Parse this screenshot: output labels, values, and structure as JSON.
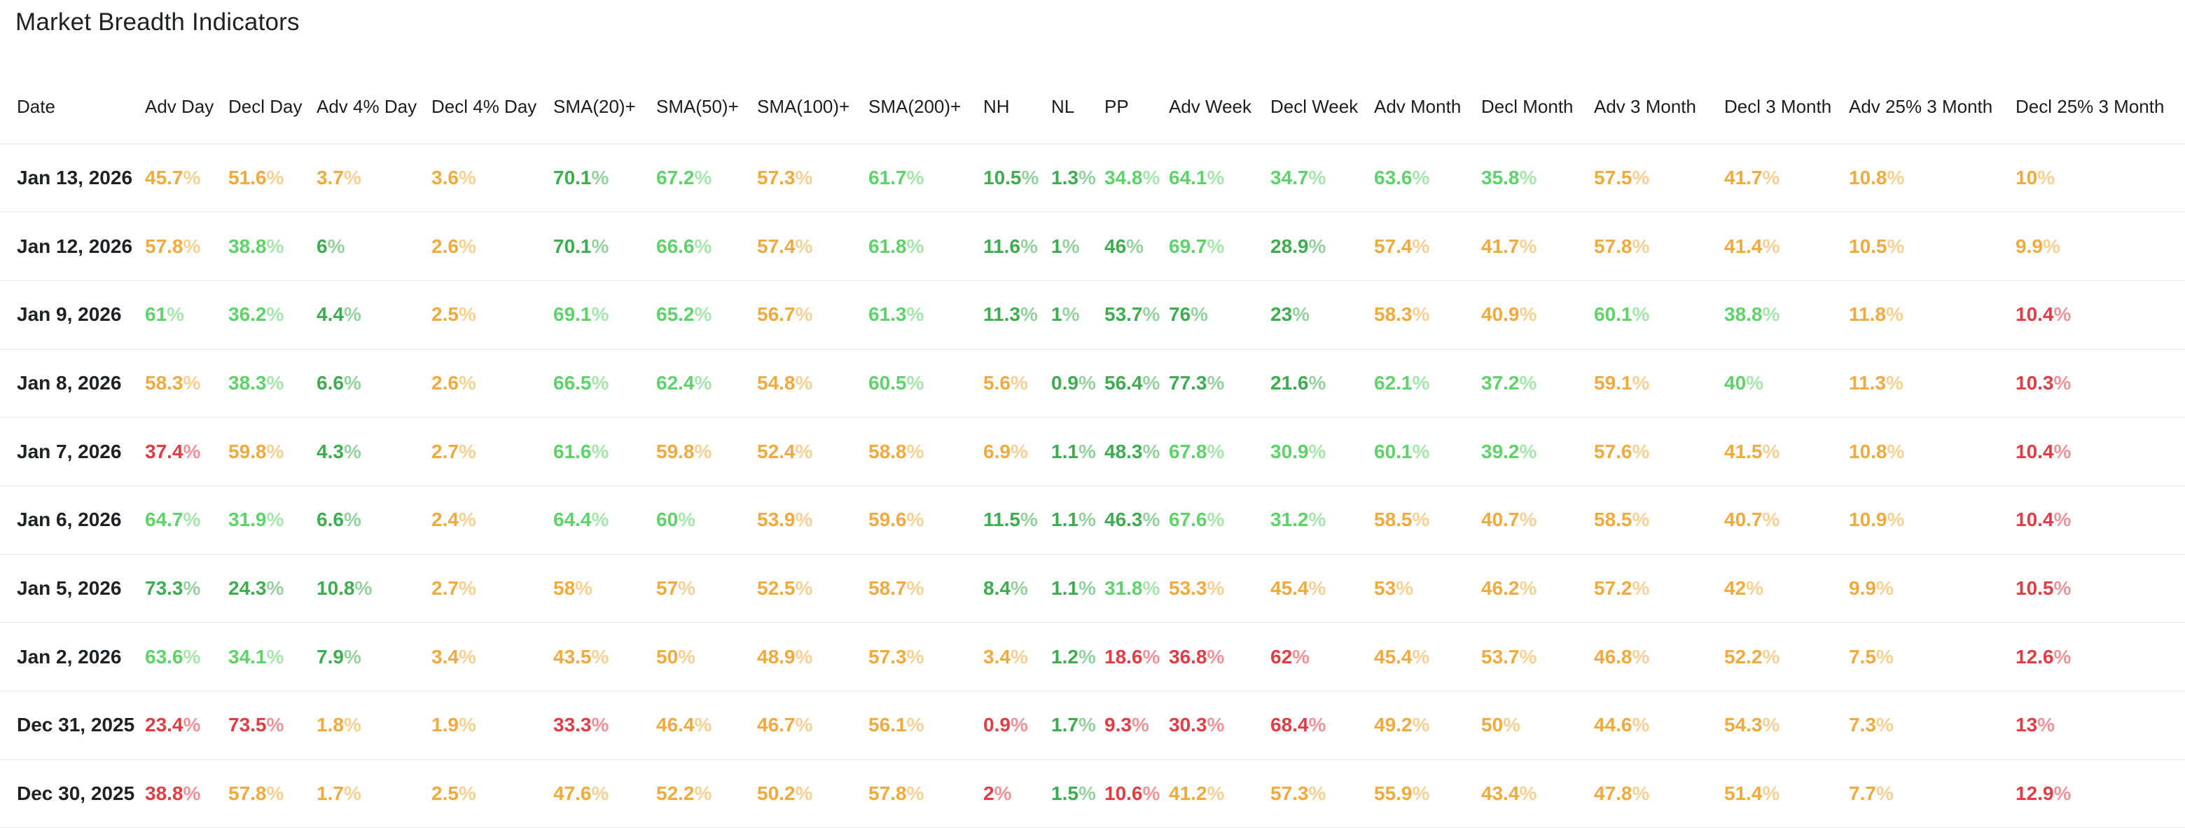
{
  "title": "Market Breadth Indicators",
  "colors": {
    "green_light": "#5ED36A",
    "green_strong": "#3EAD4F",
    "orange": "#F1AA3D",
    "red": "#E23C44",
    "heading_text": "#202124",
    "row_separator": "#E9E9EB"
  },
  "color_key_legend": {
    "g": "green_light",
    "G": "green_strong",
    "o": "orange",
    "r": "red"
  },
  "table": {
    "columns": [
      "Date",
      "Adv Day",
      "Decl Day",
      "Adv 4% Day",
      "Decl 4% Day",
      "SMA(20)+",
      "SMA(50)+",
      "SMA(100)+",
      "SMA(200)+",
      "NH",
      "NL",
      "PP",
      "Adv Week",
      "Decl Week",
      "Adv Month",
      "Decl Month",
      "Adv 3 Month",
      "Decl 3 Month",
      "Adv 25% 3 Month",
      "Decl 25% 3 Month"
    ],
    "rows": [
      {
        "date": "Jan 13, 2026",
        "cells": [
          {
            "v": "45.7%",
            "c": "o"
          },
          {
            "v": "51.6%",
            "c": "o"
          },
          {
            "v": "3.7%",
            "c": "o"
          },
          {
            "v": "3.6%",
            "c": "o"
          },
          {
            "v": "70.1%",
            "c": "G"
          },
          {
            "v": "67.2%",
            "c": "g"
          },
          {
            "v": "57.3%",
            "c": "o"
          },
          {
            "v": "61.7%",
            "c": "g"
          },
          {
            "v": "10.5%",
            "c": "G"
          },
          {
            "v": "1.3%",
            "c": "G"
          },
          {
            "v": "34.8%",
            "c": "g"
          },
          {
            "v": "64.1%",
            "c": "g"
          },
          {
            "v": "34.7%",
            "c": "g"
          },
          {
            "v": "63.6%",
            "c": "g"
          },
          {
            "v": "35.8%",
            "c": "g"
          },
          {
            "v": "57.5%",
            "c": "o"
          },
          {
            "v": "41.7%",
            "c": "o"
          },
          {
            "v": "10.8%",
            "c": "o"
          },
          {
            "v": "10%",
            "c": "o"
          }
        ]
      },
      {
        "date": "Jan 12, 2026",
        "cells": [
          {
            "v": "57.8%",
            "c": "o"
          },
          {
            "v": "38.8%",
            "c": "g"
          },
          {
            "v": "6%",
            "c": "G"
          },
          {
            "v": "2.6%",
            "c": "o"
          },
          {
            "v": "70.1%",
            "c": "G"
          },
          {
            "v": "66.6%",
            "c": "g"
          },
          {
            "v": "57.4%",
            "c": "o"
          },
          {
            "v": "61.8%",
            "c": "g"
          },
          {
            "v": "11.6%",
            "c": "G"
          },
          {
            "v": "1%",
            "c": "G"
          },
          {
            "v": "46%",
            "c": "G"
          },
          {
            "v": "69.7%",
            "c": "g"
          },
          {
            "v": "28.9%",
            "c": "G"
          },
          {
            "v": "57.4%",
            "c": "o"
          },
          {
            "v": "41.7%",
            "c": "o"
          },
          {
            "v": "57.8%",
            "c": "o"
          },
          {
            "v": "41.4%",
            "c": "o"
          },
          {
            "v": "10.5%",
            "c": "o"
          },
          {
            "v": "9.9%",
            "c": "o"
          }
        ]
      },
      {
        "date": "Jan 9, 2026",
        "cells": [
          {
            "v": "61%",
            "c": "g"
          },
          {
            "v": "36.2%",
            "c": "g"
          },
          {
            "v": "4.4%",
            "c": "G"
          },
          {
            "v": "2.5%",
            "c": "o"
          },
          {
            "v": "69.1%",
            "c": "g"
          },
          {
            "v": "65.2%",
            "c": "g"
          },
          {
            "v": "56.7%",
            "c": "o"
          },
          {
            "v": "61.3%",
            "c": "g"
          },
          {
            "v": "11.3%",
            "c": "G"
          },
          {
            "v": "1%",
            "c": "G"
          },
          {
            "v": "53.7%",
            "c": "G"
          },
          {
            "v": "76%",
            "c": "G"
          },
          {
            "v": "23%",
            "c": "G"
          },
          {
            "v": "58.3%",
            "c": "o"
          },
          {
            "v": "40.9%",
            "c": "o"
          },
          {
            "v": "60.1%",
            "c": "g"
          },
          {
            "v": "38.8%",
            "c": "g"
          },
          {
            "v": "11.8%",
            "c": "o"
          },
          {
            "v": "10.4%",
            "c": "r"
          }
        ]
      },
      {
        "date": "Jan 8, 2026",
        "cells": [
          {
            "v": "58.3%",
            "c": "o"
          },
          {
            "v": "38.3%",
            "c": "g"
          },
          {
            "v": "6.6%",
            "c": "G"
          },
          {
            "v": "2.6%",
            "c": "o"
          },
          {
            "v": "66.5%",
            "c": "g"
          },
          {
            "v": "62.4%",
            "c": "g"
          },
          {
            "v": "54.8%",
            "c": "o"
          },
          {
            "v": "60.5%",
            "c": "g"
          },
          {
            "v": "5.6%",
            "c": "o"
          },
          {
            "v": "0.9%",
            "c": "G"
          },
          {
            "v": "56.4%",
            "c": "G"
          },
          {
            "v": "77.3%",
            "c": "G"
          },
          {
            "v": "21.6%",
            "c": "G"
          },
          {
            "v": "62.1%",
            "c": "g"
          },
          {
            "v": "37.2%",
            "c": "g"
          },
          {
            "v": "59.1%",
            "c": "o"
          },
          {
            "v": "40%",
            "c": "g"
          },
          {
            "v": "11.3%",
            "c": "o"
          },
          {
            "v": "10.3%",
            "c": "r"
          }
        ]
      },
      {
        "date": "Jan 7, 2026",
        "cells": [
          {
            "v": "37.4%",
            "c": "r"
          },
          {
            "v": "59.8%",
            "c": "o"
          },
          {
            "v": "4.3%",
            "c": "G"
          },
          {
            "v": "2.7%",
            "c": "o"
          },
          {
            "v": "61.6%",
            "c": "g"
          },
          {
            "v": "59.8%",
            "c": "o"
          },
          {
            "v": "52.4%",
            "c": "o"
          },
          {
            "v": "58.8%",
            "c": "o"
          },
          {
            "v": "6.9%",
            "c": "o"
          },
          {
            "v": "1.1%",
            "c": "G"
          },
          {
            "v": "48.3%",
            "c": "G"
          },
          {
            "v": "67.8%",
            "c": "g"
          },
          {
            "v": "30.9%",
            "c": "g"
          },
          {
            "v": "60.1%",
            "c": "g"
          },
          {
            "v": "39.2%",
            "c": "g"
          },
          {
            "v": "57.6%",
            "c": "o"
          },
          {
            "v": "41.5%",
            "c": "o"
          },
          {
            "v": "10.8%",
            "c": "o"
          },
          {
            "v": "10.4%",
            "c": "r"
          }
        ]
      },
      {
        "date": "Jan 6, 2026",
        "cells": [
          {
            "v": "64.7%",
            "c": "g"
          },
          {
            "v": "31.9%",
            "c": "g"
          },
          {
            "v": "6.6%",
            "c": "G"
          },
          {
            "v": "2.4%",
            "c": "o"
          },
          {
            "v": "64.4%",
            "c": "g"
          },
          {
            "v": "60%",
            "c": "g"
          },
          {
            "v": "53.9%",
            "c": "o"
          },
          {
            "v": "59.6%",
            "c": "o"
          },
          {
            "v": "11.5%",
            "c": "G"
          },
          {
            "v": "1.1%",
            "c": "G"
          },
          {
            "v": "46.3%",
            "c": "G"
          },
          {
            "v": "67.6%",
            "c": "g"
          },
          {
            "v": "31.2%",
            "c": "g"
          },
          {
            "v": "58.5%",
            "c": "o"
          },
          {
            "v": "40.7%",
            "c": "o"
          },
          {
            "v": "58.5%",
            "c": "o"
          },
          {
            "v": "40.7%",
            "c": "o"
          },
          {
            "v": "10.9%",
            "c": "o"
          },
          {
            "v": "10.4%",
            "c": "r"
          }
        ]
      },
      {
        "date": "Jan 5, 2026",
        "cells": [
          {
            "v": "73.3%",
            "c": "G"
          },
          {
            "v": "24.3%",
            "c": "G"
          },
          {
            "v": "10.8%",
            "c": "G"
          },
          {
            "v": "2.7%",
            "c": "o"
          },
          {
            "v": "58%",
            "c": "o"
          },
          {
            "v": "57%",
            "c": "o"
          },
          {
            "v": "52.5%",
            "c": "o"
          },
          {
            "v": "58.7%",
            "c": "o"
          },
          {
            "v": "8.4%",
            "c": "G"
          },
          {
            "v": "1.1%",
            "c": "G"
          },
          {
            "v": "31.8%",
            "c": "g"
          },
          {
            "v": "53.3%",
            "c": "o"
          },
          {
            "v": "45.4%",
            "c": "o"
          },
          {
            "v": "53%",
            "c": "o"
          },
          {
            "v": "46.2%",
            "c": "o"
          },
          {
            "v": "57.2%",
            "c": "o"
          },
          {
            "v": "42%",
            "c": "o"
          },
          {
            "v": "9.9%",
            "c": "o"
          },
          {
            "v": "10.5%",
            "c": "r"
          }
        ]
      },
      {
        "date": "Jan 2, 2026",
        "cells": [
          {
            "v": "63.6%",
            "c": "g"
          },
          {
            "v": "34.1%",
            "c": "g"
          },
          {
            "v": "7.9%",
            "c": "G"
          },
          {
            "v": "3.4%",
            "c": "o"
          },
          {
            "v": "43.5%",
            "c": "o"
          },
          {
            "v": "50%",
            "c": "o"
          },
          {
            "v": "48.9%",
            "c": "o"
          },
          {
            "v": "57.3%",
            "c": "o"
          },
          {
            "v": "3.4%",
            "c": "o"
          },
          {
            "v": "1.2%",
            "c": "G"
          },
          {
            "v": "18.6%",
            "c": "r"
          },
          {
            "v": "36.8%",
            "c": "r"
          },
          {
            "v": "62%",
            "c": "r"
          },
          {
            "v": "45.4%",
            "c": "o"
          },
          {
            "v": "53.7%",
            "c": "o"
          },
          {
            "v": "46.8%",
            "c": "o"
          },
          {
            "v": "52.2%",
            "c": "o"
          },
          {
            "v": "7.5%",
            "c": "o"
          },
          {
            "v": "12.6%",
            "c": "r"
          }
        ]
      },
      {
        "date": "Dec 31, 2025",
        "cells": [
          {
            "v": "23.4%",
            "c": "r"
          },
          {
            "v": "73.5%",
            "c": "r"
          },
          {
            "v": "1.8%",
            "c": "o"
          },
          {
            "v": "1.9%",
            "c": "o"
          },
          {
            "v": "33.3%",
            "c": "r"
          },
          {
            "v": "46.4%",
            "c": "o"
          },
          {
            "v": "46.7%",
            "c": "o"
          },
          {
            "v": "56.1%",
            "c": "o"
          },
          {
            "v": "0.9%",
            "c": "r"
          },
          {
            "v": "1.7%",
            "c": "G"
          },
          {
            "v": "9.3%",
            "c": "r"
          },
          {
            "v": "30.3%",
            "c": "r"
          },
          {
            "v": "68.4%",
            "c": "r"
          },
          {
            "v": "49.2%",
            "c": "o"
          },
          {
            "v": "50%",
            "c": "o"
          },
          {
            "v": "44.6%",
            "c": "o"
          },
          {
            "v": "54.3%",
            "c": "o"
          },
          {
            "v": "7.3%",
            "c": "o"
          },
          {
            "v": "13%",
            "c": "r"
          }
        ]
      },
      {
        "date": "Dec 30, 2025",
        "cells": [
          {
            "v": "38.8%",
            "c": "r"
          },
          {
            "v": "57.8%",
            "c": "o"
          },
          {
            "v": "1.7%",
            "c": "o"
          },
          {
            "v": "2.5%",
            "c": "o"
          },
          {
            "v": "47.6%",
            "c": "o"
          },
          {
            "v": "52.2%",
            "c": "o"
          },
          {
            "v": "50.2%",
            "c": "o"
          },
          {
            "v": "57.8%",
            "c": "o"
          },
          {
            "v": "2%",
            "c": "r"
          },
          {
            "v": "1.5%",
            "c": "G"
          },
          {
            "v": "10.6%",
            "c": "r"
          },
          {
            "v": "41.2%",
            "c": "o"
          },
          {
            "v": "57.3%",
            "c": "o"
          },
          {
            "v": "55.9%",
            "c": "o"
          },
          {
            "v": "43.4%",
            "c": "o"
          },
          {
            "v": "47.8%",
            "c": "o"
          },
          {
            "v": "51.4%",
            "c": "o"
          },
          {
            "v": "7.7%",
            "c": "o"
          },
          {
            "v": "12.9%",
            "c": "r"
          }
        ]
      }
    ]
  }
}
